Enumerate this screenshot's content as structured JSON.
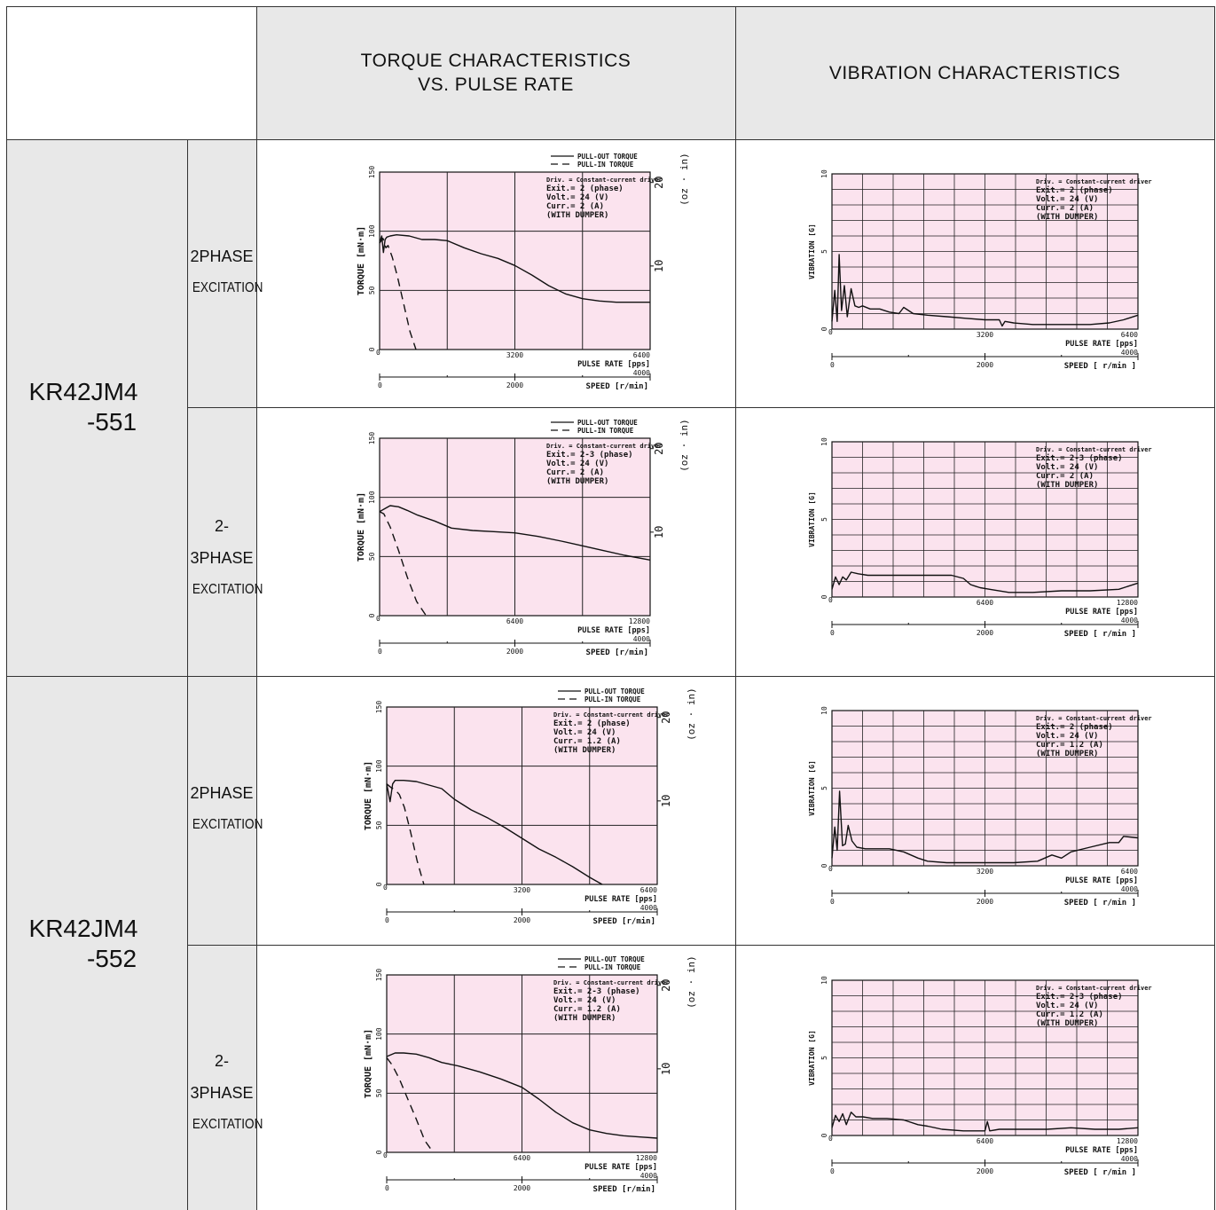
{
  "header": {
    "torque_title": [
      "TORQUE CHARACTERISTICS",
      "VS. PULSE RATE"
    ],
    "vibration_title": "VIBRATION CHARACTERISTICS"
  },
  "models": [
    {
      "name": [
        "KR42JM4",
        "-551"
      ]
    },
    {
      "name": [
        "KR42JM4",
        "-552"
      ]
    }
  ],
  "rows": [
    {
      "excitation": [
        "2PHASE",
        "EXCITATION"
      ]
    },
    {
      "excitation": [
        "2-3PHASE",
        "EXCITATION"
      ]
    },
    {
      "excitation": [
        "2PHASE",
        "EXCITATION"
      ]
    },
    {
      "excitation": [
        "2-3PHASE",
        "EXCITATION"
      ]
    }
  ],
  "colors": {
    "plot_bg": "#fbe3ee",
    "grey": "#e8e8e8",
    "line": "#111111"
  },
  "chart_data": [
    {
      "id": "torque-1",
      "type": "line",
      "legend": [
        "PULL-OUT TORQUE",
        "PULL-IN  TORQUE"
      ],
      "legend_placement": "top-right",
      "notes": [
        "Driv. = Constant-current driver",
        "Exit.=  2  (phase)",
        "Volt.=  24 (V)",
        "Curr.=  2  (A)",
        "(WITH DUMPER)"
      ],
      "ylabel": "TORQUE  [mN·m]",
      "y2label": "(oz · in)",
      "ylim": [
        0,
        150
      ],
      "yticks": [
        "0",
        "50",
        "100",
        "150"
      ],
      "y2ticks": [
        "10",
        "20"
      ],
      "xlabel": "PULSE RATE [pps]",
      "xlim": [
        0,
        6400
      ],
      "xticks": [
        "0",
        "3200",
        "6400"
      ],
      "speed_label": "SPEED [r/min]",
      "speed_ticks": [
        "0",
        "2000",
        "4000"
      ],
      "series": [
        {
          "style": "solid",
          "x": [
            0,
            50,
            90,
            130,
            170,
            250,
            400,
            700,
            1000,
            1300,
            1600,
            2000,
            2400,
            2800,
            3200,
            3600,
            4000,
            4400,
            4800,
            5200,
            5600,
            6000,
            6400
          ],
          "y": [
            90,
            96,
            82,
            93,
            95,
            96,
            97,
            96,
            93,
            93,
            92,
            86,
            81,
            77,
            71,
            63,
            54,
            47,
            43,
            41,
            40,
            40,
            40
          ]
        },
        {
          "style": "dashed",
          "x": [
            0,
            80,
            150,
            200,
            300,
            420,
            560,
            720,
            860
          ],
          "y": [
            90,
            94,
            86,
            88,
            78,
            62,
            40,
            15,
            0
          ]
        }
      ]
    },
    {
      "id": "vibration-1",
      "type": "line",
      "notes": [
        "Driv. = Constant-current driver",
        "Exit.=  2  (phase)",
        "Volt.=  24 (V)",
        "Curr.=  2  (A)",
        "(WITH DUMPER)"
      ],
      "ylabel": "VIBRATION [G]",
      "ylim": [
        0,
        10
      ],
      "yticks": [
        "0",
        "5",
        "10"
      ],
      "xlabel": "PULSE RATE [pps]",
      "xlim": [
        0,
        6400
      ],
      "xticks": [
        "0",
        "3200",
        "6400"
      ],
      "speed_label": "SPEED [ r/min ]",
      "speed_ticks": [
        "0",
        "2000",
        "4000"
      ],
      "series": [
        {
          "style": "solid",
          "x": [
            0,
            60,
            110,
            150,
            200,
            260,
            320,
            400,
            480,
            560,
            640,
            800,
            1000,
            1200,
            1400,
            1500,
            1700,
            2000,
            2400,
            2800,
            3200,
            3500,
            3560,
            3620,
            3800,
            4200,
            4800,
            5400,
            5800,
            6100,
            6400
          ],
          "y": [
            0.5,
            2.5,
            0.5,
            4.8,
            1.2,
            2.8,
            0.8,
            2.6,
            1.5,
            1.4,
            1.5,
            1.3,
            1.3,
            1.1,
            1.0,
            1.4,
            1.0,
            0.9,
            0.8,
            0.7,
            0.6,
            0.6,
            0.2,
            0.5,
            0.4,
            0.3,
            0.3,
            0.3,
            0.4,
            0.6,
            0.9
          ]
        }
      ]
    },
    {
      "id": "torque-2",
      "type": "line",
      "legend": [
        "PULL-OUT TORQUE",
        "PULL-IN  TORQUE"
      ],
      "legend_placement": "top-right",
      "notes": [
        "Driv. = Constant-current driver",
        "Exit.= 2-3 (phase)",
        "Volt.=  24 (V)",
        "Curr.=  2  (A)",
        "(WITH DUMPER)"
      ],
      "ylabel": "TORQUE  [mN·m]",
      "y2label": "(oz · in)",
      "ylim": [
        0,
        150
      ],
      "yticks": [
        "0",
        "50",
        "100",
        "150"
      ],
      "y2ticks": [
        "10",
        "20"
      ],
      "xlabel": "PULSE RATE [pps]",
      "xlim": [
        0,
        12800
      ],
      "xticks": [
        "0",
        "6400",
        "12800"
      ],
      "speed_label": "SPEED [r/min]",
      "speed_ticks": [
        "0",
        "2000",
        "4000"
      ],
      "series": [
        {
          "style": "solid",
          "x": [
            0,
            200,
            500,
            900,
            1300,
            1800,
            2600,
            3400,
            4400,
            5400,
            6400,
            7500,
            8600,
            9600,
            10600,
            11600,
            12800
          ],
          "y": [
            88,
            90,
            93,
            92,
            89,
            85,
            80,
            74,
            72,
            71,
            70,
            67,
            63,
            59,
            55,
            51,
            47
          ]
        },
        {
          "style": "dashed",
          "x": [
            0,
            200,
            500,
            900,
            1300,
            1750,
            2200
          ],
          "y": [
            88,
            86,
            75,
            55,
            33,
            12,
            0
          ]
        }
      ]
    },
    {
      "id": "vibration-2",
      "type": "line",
      "notes": [
        "Driv. = Constant-current driver",
        "Exit.= 2-3 (phase)",
        "Volt.=  24 (V)",
        "Curr.=  2  (A)",
        "(WITH DUMPER)"
      ],
      "ylabel": "VIBRATION [G]",
      "ylim": [
        0,
        10
      ],
      "yticks": [
        "0",
        "5",
        "10"
      ],
      "xlabel": "PULSE RATE [pps]",
      "xlim": [
        0,
        12800
      ],
      "xticks": [
        "0",
        "6400",
        "12800"
      ],
      "speed_label": "SPEED [ r/min ]",
      "speed_ticks": [
        "0",
        "2000",
        "4000"
      ],
      "series": [
        {
          "style": "solid",
          "x": [
            0,
            150,
            300,
            450,
            600,
            800,
            1100,
            1500,
            2200,
            3000,
            4000,
            5000,
            5500,
            5800,
            6000,
            6200,
            6600,
            7400,
            8400,
            9600,
            10800,
            12000,
            12800
          ],
          "y": [
            0.5,
            1.3,
            0.8,
            1.3,
            1.1,
            1.6,
            1.5,
            1.4,
            1.4,
            1.4,
            1.4,
            1.4,
            1.2,
            0.8,
            0.7,
            0.6,
            0.5,
            0.3,
            0.3,
            0.4,
            0.4,
            0.5,
            0.9
          ]
        }
      ]
    },
    {
      "id": "torque-3",
      "type": "line",
      "legend": [
        "PULL-OUT TORQUE",
        "PULL-IN  TORQUE"
      ],
      "legend_placement": "top-right",
      "notes": [
        "Driv. = Constant-current driver",
        "Exit.=  2  (phase)",
        "Volt.=  24 (V)",
        "Curr.= 1.2 (A)",
        "(WITH DUMPER)"
      ],
      "ylabel": "TORQUE  [mN·m]",
      "y2label": "(oz · in)",
      "ylim": [
        0,
        150
      ],
      "yticks": [
        "0",
        "50",
        "100",
        "150"
      ],
      "y2ticks": [
        "10",
        "20"
      ],
      "xlabel": "PULSE RATE [pps]",
      "xlim": [
        0,
        6400
      ],
      "xticks": [
        "0",
        "3200",
        "6400"
      ],
      "speed_label": "SPEED [r/min]",
      "speed_ticks": [
        "0",
        "2000",
        "4000"
      ],
      "series": [
        {
          "style": "solid",
          "x": [
            0,
            80,
            140,
            200,
            400,
            700,
            1000,
            1300,
            1600,
            2000,
            2400,
            2800,
            3200,
            3600,
            4000,
            4400,
            4800,
            5100
          ],
          "y": [
            85,
            70,
            85,
            88,
            88,
            87,
            84,
            81,
            72,
            63,
            56,
            48,
            39,
            30,
            23,
            15,
            6,
            0
          ]
        },
        {
          "style": "dashed",
          "x": [
            0,
            100,
            200,
            300,
            420,
            560,
            720,
            880
          ],
          "y": [
            85,
            82,
            80,
            76,
            65,
            45,
            20,
            0
          ]
        }
      ]
    },
    {
      "id": "vibration-3",
      "type": "line",
      "notes": [
        "Driv. = Constant-current driver",
        "Exit.=  2  (phase)",
        "Volt.=  24 (V)",
        "Curr.= 1.2 (A)",
        "(WITH DUMPER)"
      ],
      "ylabel": "VIBRATION [G]",
      "ylim": [
        0,
        10
      ],
      "yticks": [
        "0",
        "5",
        "10"
      ],
      "xlabel": "PULSE RATE [pps]",
      "xlim": [
        0,
        6400
      ],
      "xticks": [
        "0",
        "3200",
        "6400"
      ],
      "speed_label": "SPEED [ r/min ]",
      "speed_ticks": [
        "0",
        "2000",
        "4000"
      ],
      "series": [
        {
          "style": "solid",
          "x": [
            0,
            60,
            110,
            160,
            220,
            280,
            340,
            420,
            520,
            700,
            900,
            1200,
            1500,
            1800,
            2000,
            2400,
            2800,
            3200,
            3800,
            4300,
            4600,
            4800,
            5000,
            5400,
            5800,
            6000,
            6100,
            6400
          ],
          "y": [
            0.5,
            2.5,
            1.0,
            4.8,
            1.3,
            1.4,
            2.6,
            1.6,
            1.2,
            1.1,
            1.1,
            1.1,
            0.9,
            0.5,
            0.3,
            0.2,
            0.2,
            0.2,
            0.2,
            0.3,
            0.7,
            0.5,
            0.9,
            1.2,
            1.5,
            1.5,
            1.9,
            1.8
          ]
        }
      ]
    },
    {
      "id": "torque-4",
      "type": "line",
      "legend": [
        "PULL-OUT TORQUE",
        "PULL-IN  TORQUE"
      ],
      "legend_placement": "top-right",
      "notes": [
        "Driv. = Constant-current driver",
        "Exit.= 2-3 (phase)",
        "Volt.=  24 (V)",
        "Curr.= 1.2 (A)",
        "(WITH DUMPER)"
      ],
      "ylabel": "TORQUE  [mN·m]",
      "y2label": "(oz · in)",
      "ylim": [
        0,
        150
      ],
      "yticks": [
        "0",
        "50",
        "100",
        "150"
      ],
      "y2ticks": [
        "10",
        "20"
      ],
      "xlabel": "PULSE RATE [pps]",
      "xlim": [
        0,
        12800
      ],
      "xticks": [
        "0",
        "6400",
        "12800"
      ],
      "speed_label": "SPEED [r/min]",
      "speed_ticks": [
        "0",
        "2000",
        "4000"
      ],
      "series": [
        {
          "style": "solid",
          "x": [
            0,
            400,
            800,
            1400,
            2000,
            2600,
            3400,
            4400,
            5400,
            6400,
            7200,
            8000,
            8800,
            9600,
            10400,
            11200,
            12000,
            12800
          ],
          "y": [
            81,
            84,
            84,
            83,
            80,
            76,
            73,
            68,
            62,
            55,
            45,
            34,
            25,
            19,
            16,
            14,
            13,
            12
          ]
        },
        {
          "style": "dashed",
          "x": [
            0,
            250,
            600,
            1000,
            1400,
            1800,
            2200
          ],
          "y": [
            80,
            74,
            62,
            45,
            28,
            10,
            0
          ]
        }
      ]
    },
    {
      "id": "vibration-4",
      "type": "line",
      "notes": [
        "Driv. = Constant-current driver",
        "Exit.= 2-3 (phase)",
        "Volt.=  24 (V)",
        "Curr.= 1.2 (A)",
        "(WITH DUMPER)"
      ],
      "ylabel": "VIBRATION [G]",
      "ylim": [
        0,
        10
      ],
      "yticks": [
        "0",
        "5",
        "10"
      ],
      "xlabel": "PULSE RATE [pps]",
      "xlim": [
        0,
        12800
      ],
      "xticks": [
        "0",
        "6400",
        "12800"
      ],
      "speed_label": "SPEED [ r/min ]",
      "speed_ticks": [
        "0",
        "2000",
        "4000"
      ],
      "series": [
        {
          "style": "solid",
          "x": [
            0,
            150,
            300,
            450,
            600,
            800,
            1000,
            1300,
            1700,
            2300,
            3000,
            3600,
            4000,
            4600,
            5500,
            6400,
            6500,
            6600,
            7000,
            8000,
            9000,
            10000,
            11000,
            12000,
            12800
          ],
          "y": [
            0.5,
            1.3,
            0.9,
            1.4,
            0.7,
            1.5,
            1.2,
            1.2,
            1.1,
            1.1,
            1.0,
            0.7,
            0.6,
            0.4,
            0.3,
            0.3,
            0.9,
            0.3,
            0.4,
            0.4,
            0.4,
            0.5,
            0.4,
            0.4,
            0.5
          ]
        }
      ]
    }
  ]
}
